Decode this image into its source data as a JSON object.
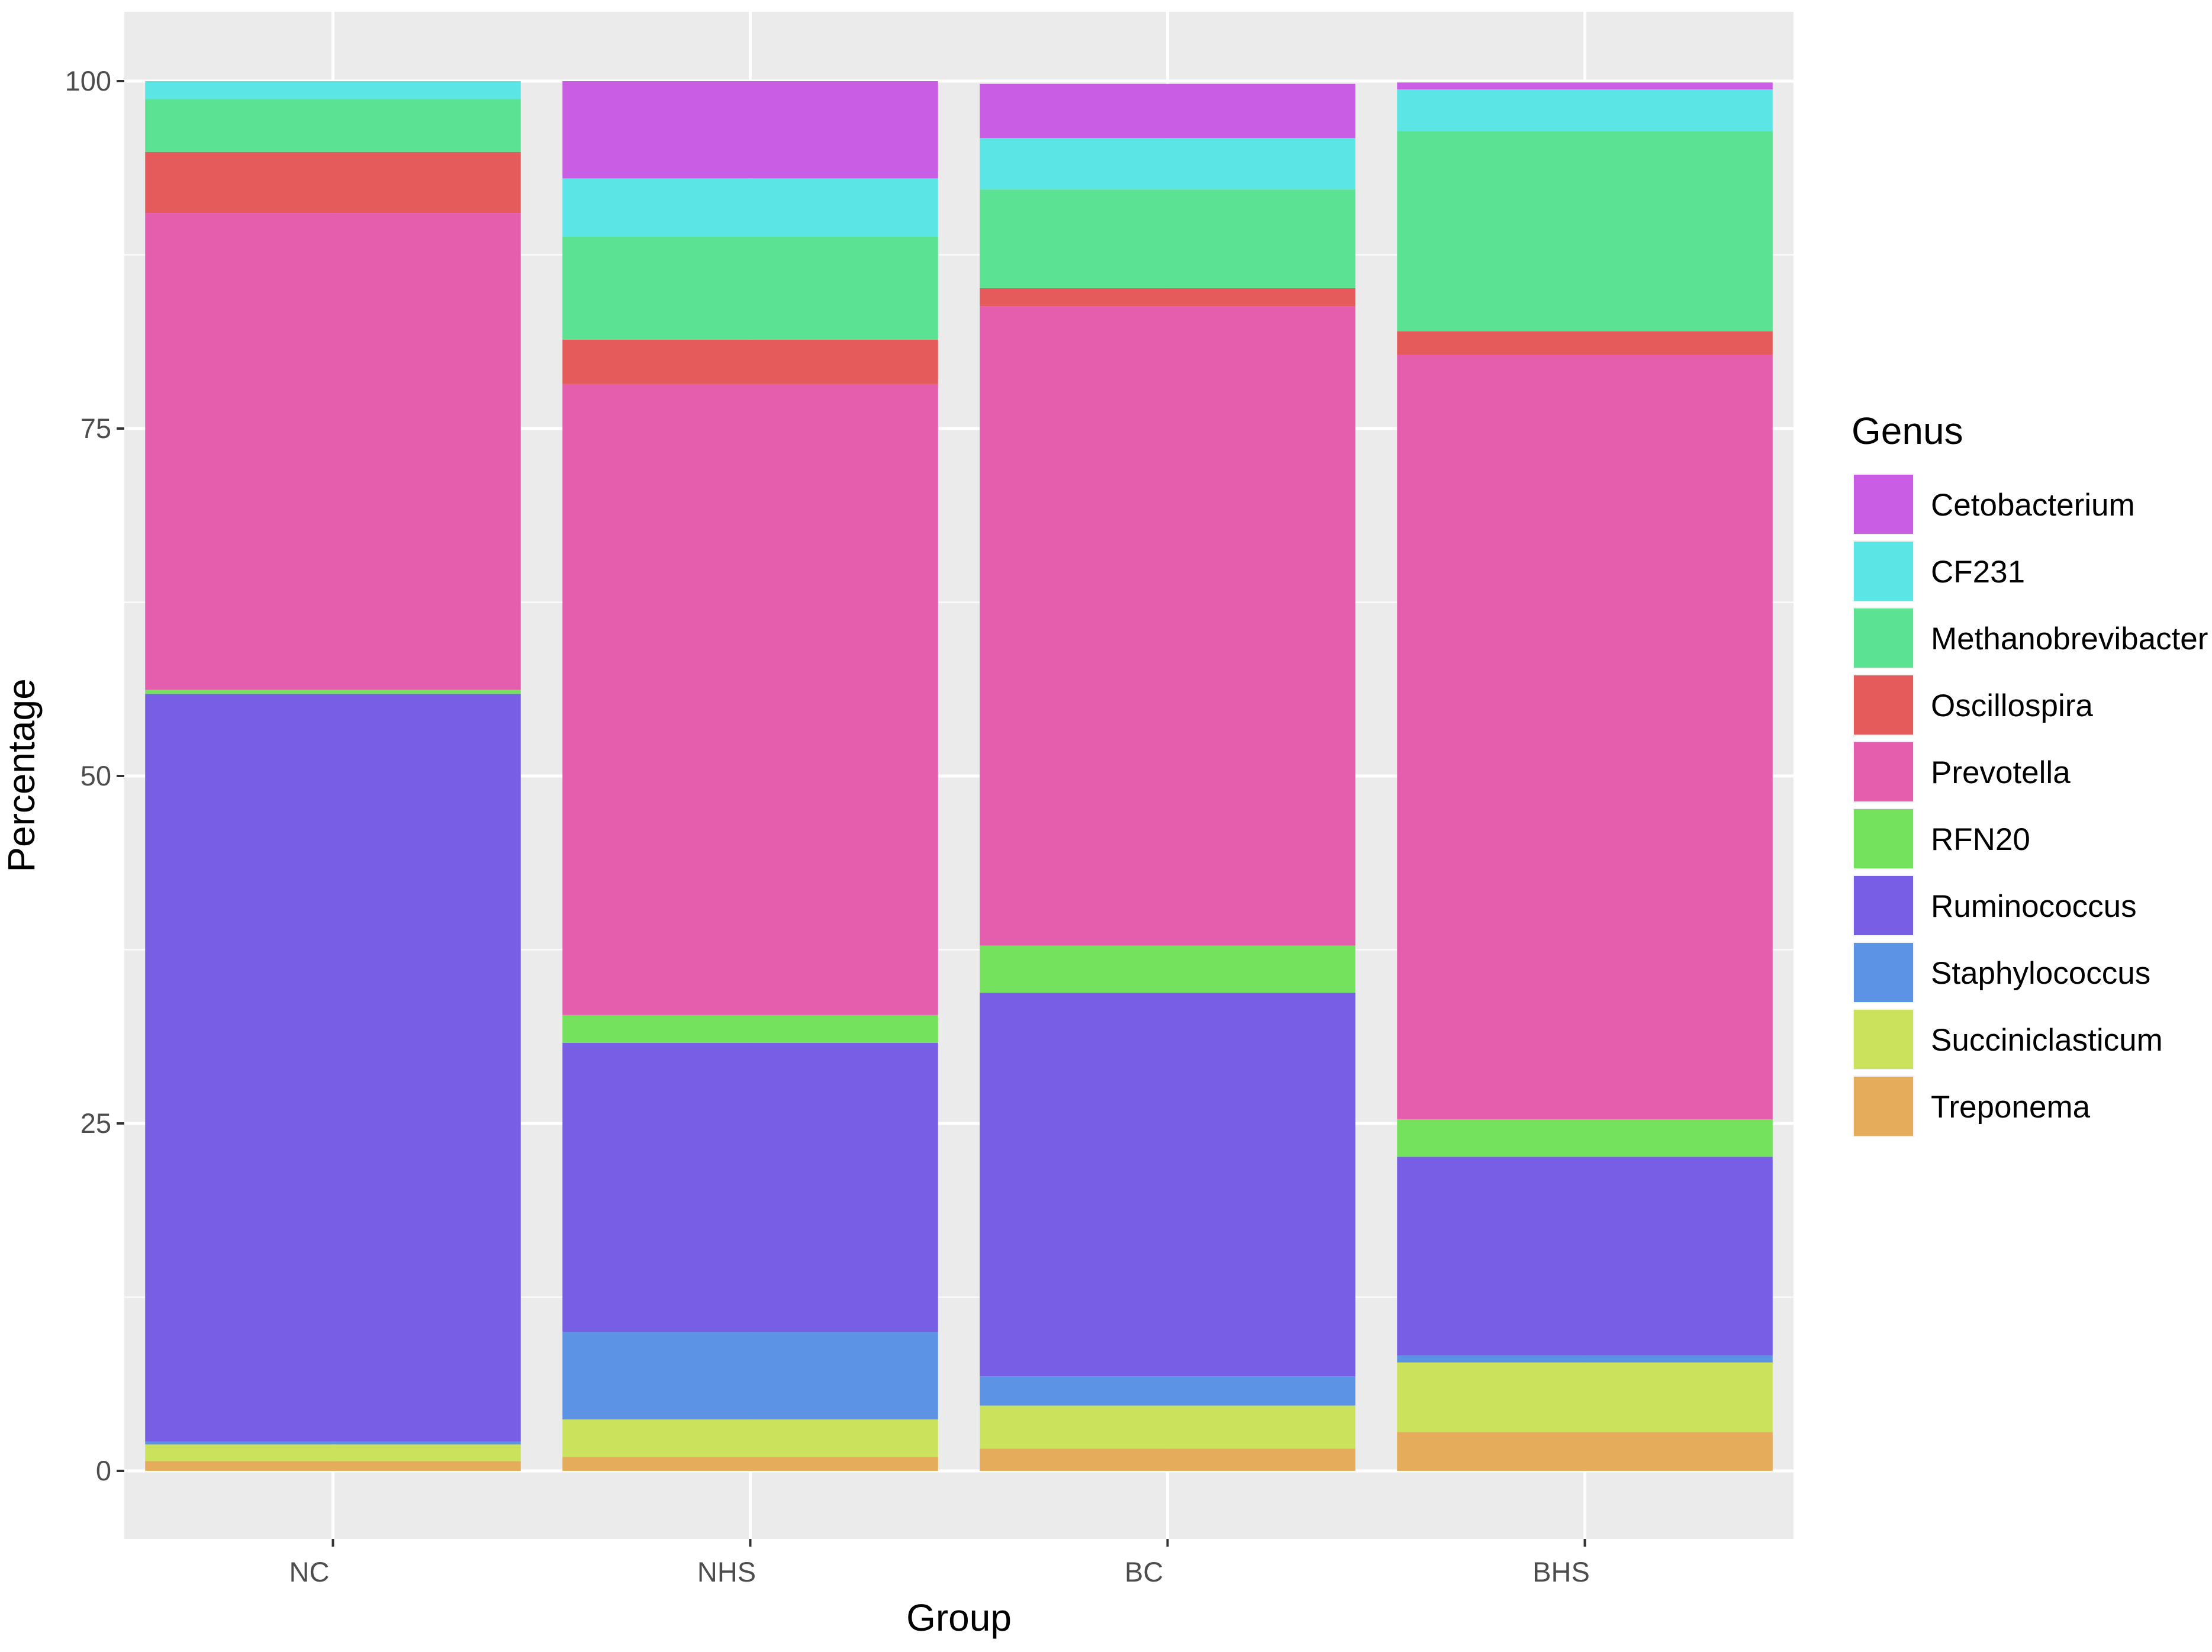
{
  "chart_data": {
    "type": "bar",
    "stacked": true,
    "title": "",
    "xlabel": "Group",
    "ylabel": "Percentage",
    "ylim": [
      -5,
      105
    ],
    "yticks": [
      0,
      25,
      50,
      75,
      100
    ],
    "ytick_labels": [
      "0",
      "25",
      "50",
      "75",
      "100"
    ],
    "grid": true,
    "categories": [
      "NC",
      "NHS",
      "BC",
      "BHS"
    ],
    "legend": {
      "title": "Genus",
      "position": "right"
    },
    "series": [
      {
        "name": "Treponema",
        "color": "#E5AD5B",
        "values": [
          0.7,
          1.0,
          1.6,
          2.8
        ]
      },
      {
        "name": "Succiniclasticum",
        "color": "#CBE25C",
        "values": [
          1.2,
          2.7,
          3.1,
          5.0
        ]
      },
      {
        "name": "Staphylococcus",
        "color": "#5C93E5",
        "values": [
          0.2,
          6.3,
          2.1,
          0.5
        ]
      },
      {
        "name": "Ruminococcus",
        "color": "#775EE5",
        "values": [
          53.8,
          20.8,
          27.6,
          14.3
        ]
      },
      {
        "name": "RFN20",
        "color": "#74E25C",
        "values": [
          0.3,
          2.0,
          3.4,
          2.7
        ]
      },
      {
        "name": "Prevotella",
        "color": "#E55EAD",
        "values": [
          34.3,
          45.4,
          46.0,
          55.0
        ]
      },
      {
        "name": "Oscillospira",
        "color": "#E55B5B",
        "values": [
          4.4,
          3.2,
          1.3,
          1.7
        ]
      },
      {
        "name": "Methanobrevibacter",
        "color": "#5CE293",
        "values": [
          3.8,
          7.4,
          7.1,
          14.4
        ]
      },
      {
        "name": "CF231",
        "color": "#5CE5E5",
        "values": [
          1.3,
          4.2,
          3.7,
          3.0
        ]
      },
      {
        "name": "Cetobacterium",
        "color": "#C95EE5",
        "values": [
          0.0,
          7.0,
          3.9,
          0.5
        ]
      }
    ]
  }
}
